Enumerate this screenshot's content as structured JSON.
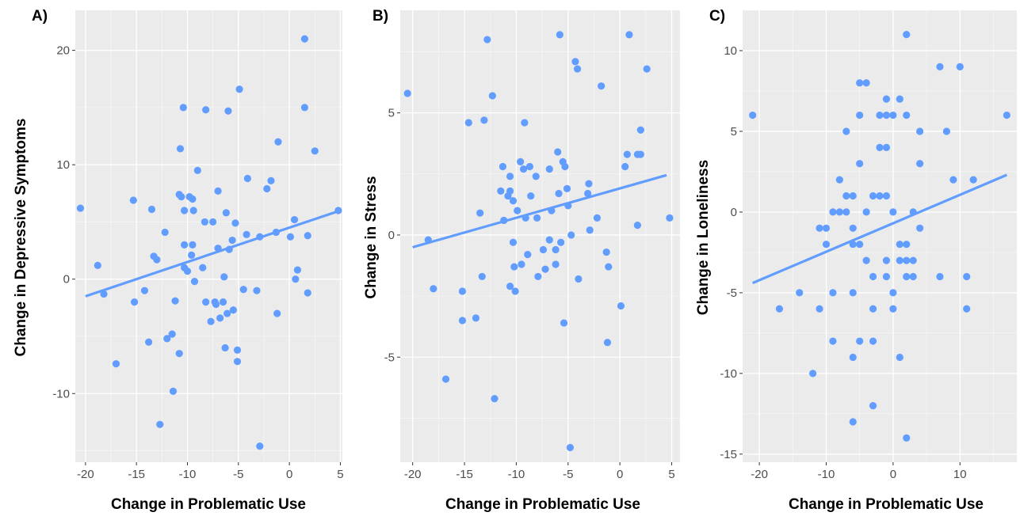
{
  "colors": {
    "panel_bg": "#ebebeb",
    "grid": "#ffffff",
    "point": "#619cff",
    "line": "#619cff",
    "tick_text": "#4d4d4d"
  },
  "chart_data": [
    {
      "type": "scatter",
      "panel_label": "A)",
      "xlabel": "Change in Problematic Use",
      "ylabel": "Change in Depressive Symptoms",
      "xlim": [
        -21,
        5.2
      ],
      "ylim": [
        -16,
        23.5
      ],
      "xticks": [
        -20,
        -15,
        -10,
        -5,
        0,
        5
      ],
      "yticks": [
        -10,
        0,
        10,
        20
      ],
      "xtick_labels": [
        "-20",
        "-15",
        "-10",
        "-5",
        "0",
        "5"
      ],
      "ytick_labels": [
        "-10",
        "0",
        "10",
        "20"
      ],
      "grid": true,
      "trend_line": {
        "x": [
          -20,
          5
        ],
        "y": [
          -1.5,
          6
        ]
      },
      "points": [
        [
          -20.5,
          6.2
        ],
        [
          -18.8,
          1.2
        ],
        [
          -18.2,
          -1.3
        ],
        [
          -17,
          -7.4
        ],
        [
          -15.3,
          6.9
        ],
        [
          -15.2,
          -2
        ],
        [
          -14.2,
          -1
        ],
        [
          -13.8,
          -5.5
        ],
        [
          -13.5,
          6.1
        ],
        [
          -13.3,
          2
        ],
        [
          -13,
          1.7
        ],
        [
          -12.7,
          -12.7
        ],
        [
          -12.2,
          4.1
        ],
        [
          -12,
          -5.2
        ],
        [
          -11.5,
          -4.8
        ],
        [
          -11.4,
          -9.8
        ],
        [
          -11.2,
          -1.9
        ],
        [
          -10.8,
          -6.5
        ],
        [
          -10.8,
          7.4
        ],
        [
          -10.7,
          11.4
        ],
        [
          -10.6,
          7.2
        ],
        [
          -10.4,
          15
        ],
        [
          -10.3,
          1
        ],
        [
          -10.3,
          3
        ],
        [
          -10.3,
          6
        ],
        [
          -10,
          0.7
        ],
        [
          -9.8,
          7.2
        ],
        [
          -9.6,
          2.1
        ],
        [
          -9.5,
          7
        ],
        [
          -9.5,
          3
        ],
        [
          -9.4,
          6
        ],
        [
          -9.3,
          -0.2
        ],
        [
          -9,
          9.5
        ],
        [
          -8.5,
          1
        ],
        [
          -8.3,
          5
        ],
        [
          -8.2,
          14.8
        ],
        [
          -8.2,
          -2
        ],
        [
          -7.7,
          -3.7
        ],
        [
          -7.5,
          5
        ],
        [
          -7.3,
          -2
        ],
        [
          -7.2,
          -2.2
        ],
        [
          -7,
          7.7
        ],
        [
          -7,
          2.7
        ],
        [
          -6.8,
          -3.4
        ],
        [
          -6.5,
          -2
        ],
        [
          -6.4,
          0.2
        ],
        [
          -6.3,
          -6
        ],
        [
          -6.2,
          5.8
        ],
        [
          -6.1,
          -3
        ],
        [
          -6,
          14.7
        ],
        [
          -5.9,
          2.6
        ],
        [
          -5.6,
          3.4
        ],
        [
          -5.5,
          -2.7
        ],
        [
          -5.3,
          4.9
        ],
        [
          -5.1,
          -6.2
        ],
        [
          -5.1,
          -7.2
        ],
        [
          -4.9,
          16.6
        ],
        [
          -4.5,
          -0.9
        ],
        [
          -4.2,
          3.9
        ],
        [
          -4.1,
          8.8
        ],
        [
          -3.2,
          -1
        ],
        [
          -2.9,
          3.7
        ],
        [
          -2.9,
          -14.6
        ],
        [
          -2.2,
          7.9
        ],
        [
          -1.8,
          8.6
        ],
        [
          -1.3,
          4.1
        ],
        [
          -1.1,
          12
        ],
        [
          -1.2,
          -3
        ],
        [
          0.1,
          3.7
        ],
        [
          0.5,
          5.2
        ],
        [
          0.6,
          0
        ],
        [
          0.8,
          0.8
        ],
        [
          1.5,
          15
        ],
        [
          1.5,
          21
        ],
        [
          1.8,
          3.8
        ],
        [
          1.8,
          -1.2
        ],
        [
          2.5,
          11.2
        ],
        [
          4.8,
          6
        ]
      ]
    },
    {
      "type": "scatter",
      "panel_label": "B)",
      "xlabel": "Change in Problematic Use",
      "ylabel": "Change in Stress",
      "xlim": [
        -21.2,
        5.8
      ],
      "ylim": [
        -9.3,
        9.2
      ],
      "xticks": [
        -20,
        -15,
        -10,
        -5,
        0,
        5
      ],
      "yticks": [
        -5,
        0,
        5
      ],
      "xtick_labels": [
        "-20",
        "-15",
        "-10",
        "-5",
        "0",
        "5"
      ],
      "ytick_labels": [
        "-5",
        "0",
        "5"
      ],
      "grid": true,
      "trend_line": {
        "x": [
          -20,
          4.5
        ],
        "y": [
          -0.5,
          2.45
        ]
      },
      "points": [
        [
          -20.5,
          5.8
        ],
        [
          -18.5,
          -0.2
        ],
        [
          -18,
          -2.2
        ],
        [
          -16.8,
          -5.9
        ],
        [
          -15.2,
          -2.3
        ],
        [
          -15.2,
          -3.5
        ],
        [
          -14.6,
          4.6
        ],
        [
          -13.9,
          -3.4
        ],
        [
          -13.5,
          0.9
        ],
        [
          -13.3,
          -1.7
        ],
        [
          -13.1,
          4.7
        ],
        [
          -12.8,
          8
        ],
        [
          -12.3,
          5.7
        ],
        [
          -12.1,
          -6.7
        ],
        [
          -11.5,
          1.8
        ],
        [
          -11.3,
          2.8
        ],
        [
          -11.2,
          0.6
        ],
        [
          -10.8,
          1.6
        ],
        [
          -10.6,
          2.4
        ],
        [
          -10.6,
          -2.1
        ],
        [
          -10.6,
          1.8
        ],
        [
          -10.3,
          1.4
        ],
        [
          -10.3,
          -0.3
        ],
        [
          -10.2,
          -1.3
        ],
        [
          -10.1,
          -2.3
        ],
        [
          -9.9,
          1
        ],
        [
          -9.6,
          3
        ],
        [
          -9.5,
          -1.2
        ],
        [
          -9.3,
          2.7
        ],
        [
          -9.2,
          4.6
        ],
        [
          -9.1,
          0.7
        ],
        [
          -8.9,
          -0.8
        ],
        [
          -8.7,
          2.8
        ],
        [
          -8.6,
          1.6
        ],
        [
          -8.1,
          2.4
        ],
        [
          -8,
          0.7
        ],
        [
          -7.9,
          -1.7
        ],
        [
          -7.4,
          -0.6
        ],
        [
          -7.2,
          -1.4
        ],
        [
          -6.8,
          2.7
        ],
        [
          -6.8,
          -0.2
        ],
        [
          -6.6,
          1
        ],
        [
          -6.2,
          -1.2
        ],
        [
          -6.2,
          -0.6
        ],
        [
          -6,
          3.4
        ],
        [
          -5.9,
          1.7
        ],
        [
          -5.8,
          8.2
        ],
        [
          -5.7,
          -0.3
        ],
        [
          -5.5,
          3
        ],
        [
          -5.4,
          -3.6
        ],
        [
          -5.3,
          2.8
        ],
        [
          -5.1,
          1.9
        ],
        [
          -5,
          1.2
        ],
        [
          -4.8,
          -8.7
        ],
        [
          -4.7,
          0
        ],
        [
          -4.3,
          7.1
        ],
        [
          -4.1,
          6.8
        ],
        [
          -4,
          -1.8
        ],
        [
          -3.1,
          1.7
        ],
        [
          -3,
          2.1
        ],
        [
          -2.9,
          0.2
        ],
        [
          -2.2,
          0.7
        ],
        [
          -1.8,
          6.1
        ],
        [
          -1.3,
          -0.7
        ],
        [
          -1.2,
          -4.4
        ],
        [
          -1.1,
          -1.3
        ],
        [
          0.1,
          -2.9
        ],
        [
          0.5,
          2.8
        ],
        [
          0.7,
          3.3
        ],
        [
          0.9,
          8.2
        ],
        [
          1.7,
          3.3
        ],
        [
          1.7,
          0.4
        ],
        [
          2,
          4.3
        ],
        [
          2,
          3.3
        ],
        [
          2.6,
          6.8
        ],
        [
          4.8,
          0.7
        ]
      ]
    },
    {
      "type": "scatter",
      "panel_label": "C)",
      "xlabel": "Change in Problematic Use",
      "ylabel": "Change in Loneliness",
      "xlim": [
        -22.5,
        18.5
      ],
      "ylim": [
        -15.5,
        12.5
      ],
      "xticks": [
        -20,
        -10,
        0,
        10
      ],
      "yticks": [
        -15,
        -10,
        -5,
        0,
        5,
        10
      ],
      "xtick_labels": [
        "-20",
        "-10",
        "0",
        "10"
      ],
      "ytick_labels": [
        "-15",
        "-10",
        "-5",
        "0",
        "5",
        "10"
      ],
      "grid": true,
      "trend_line": {
        "x": [
          -21,
          17
        ],
        "y": [
          -4.4,
          2.3
        ]
      },
      "points": [
        [
          -21,
          6
        ],
        [
          -17,
          -6
        ],
        [
          -14,
          -5
        ],
        [
          -12,
          -10
        ],
        [
          -11,
          -1
        ],
        [
          -11,
          -6
        ],
        [
          -10,
          -1
        ],
        [
          -10,
          -2
        ],
        [
          -9,
          -5
        ],
        [
          -9,
          0
        ],
        [
          -9,
          -8
        ],
        [
          -8,
          0
        ],
        [
          -8,
          2
        ],
        [
          -7,
          0
        ],
        [
          -7,
          1
        ],
        [
          -7,
          5
        ],
        [
          -6,
          1
        ],
        [
          -6,
          -1
        ],
        [
          -6,
          -2
        ],
        [
          -6,
          -5
        ],
        [
          -6,
          -9
        ],
        [
          -6,
          -13
        ],
        [
          -5,
          -2
        ],
        [
          -5,
          3
        ],
        [
          -5,
          6
        ],
        [
          -5,
          8
        ],
        [
          -5,
          -8
        ],
        [
          -4,
          0
        ],
        [
          -4,
          -3
        ],
        [
          -4,
          8
        ],
        [
          -3,
          1
        ],
        [
          -3,
          -4
        ],
        [
          -3,
          -6
        ],
        [
          -3,
          -8
        ],
        [
          -3,
          -12
        ],
        [
          -2,
          1
        ],
        [
          -2,
          4
        ],
        [
          -2,
          6
        ],
        [
          -1,
          1
        ],
        [
          -1,
          4
        ],
        [
          -1,
          6
        ],
        [
          -1,
          7
        ],
        [
          -1,
          -3
        ],
        [
          -1,
          -4
        ],
        [
          0,
          0
        ],
        [
          0,
          -5
        ],
        [
          0,
          -6
        ],
        [
          0,
          6
        ],
        [
          1,
          7
        ],
        [
          1,
          -2
        ],
        [
          1,
          -3
        ],
        [
          1,
          -9
        ],
        [
          2,
          11
        ],
        [
          2,
          6
        ],
        [
          2,
          -2
        ],
        [
          2,
          -3
        ],
        [
          2,
          -4
        ],
        [
          2,
          -14
        ],
        [
          3,
          -3
        ],
        [
          3,
          0
        ],
        [
          3,
          -4
        ],
        [
          4,
          5
        ],
        [
          4,
          3
        ],
        [
          4,
          -1
        ],
        [
          7,
          9
        ],
        [
          7,
          -4
        ],
        [
          8,
          5
        ],
        [
          9,
          2
        ],
        [
          10,
          9
        ],
        [
          11,
          -4
        ],
        [
          11,
          -6
        ],
        [
          12,
          2
        ],
        [
          17,
          6
        ]
      ]
    }
  ]
}
